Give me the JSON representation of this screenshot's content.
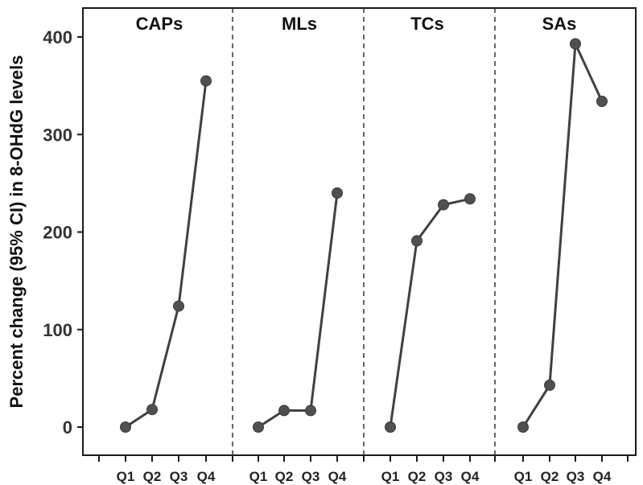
{
  "chart_data": {
    "type": "line",
    "ylabel": "Percent change (95% CI) in 8-OHdG levels",
    "ylim": [
      -30,
      400
    ],
    "yticks": [
      0,
      100,
      200,
      300,
      400
    ],
    "grid": false,
    "legend": "none",
    "colors": {
      "line": "#404040",
      "marker": "#505050",
      "axis": "#1a1a1a",
      "divider": "#333333"
    },
    "panels": [
      {
        "title": "CAPs",
        "categories": [
          "Q1",
          "Q2",
          "Q3",
          "Q4"
        ],
        "values": [
          0,
          18,
          124,
          355
        ]
      },
      {
        "title": "MLs",
        "categories": [
          "Q1",
          "Q2",
          "Q3",
          "Q4"
        ],
        "values": [
          0,
          17,
          17,
          240
        ]
      },
      {
        "title": "TCs",
        "categories": [
          "Q1",
          "Q2",
          "Q3",
          "Q4"
        ],
        "values": [
          0,
          191,
          228,
          234
        ]
      },
      {
        "title": "SAs",
        "categories": [
          "Q1",
          "Q2",
          "Q3",
          "Q4"
        ],
        "values": [
          0,
          43,
          393,
          334
        ]
      }
    ]
  }
}
